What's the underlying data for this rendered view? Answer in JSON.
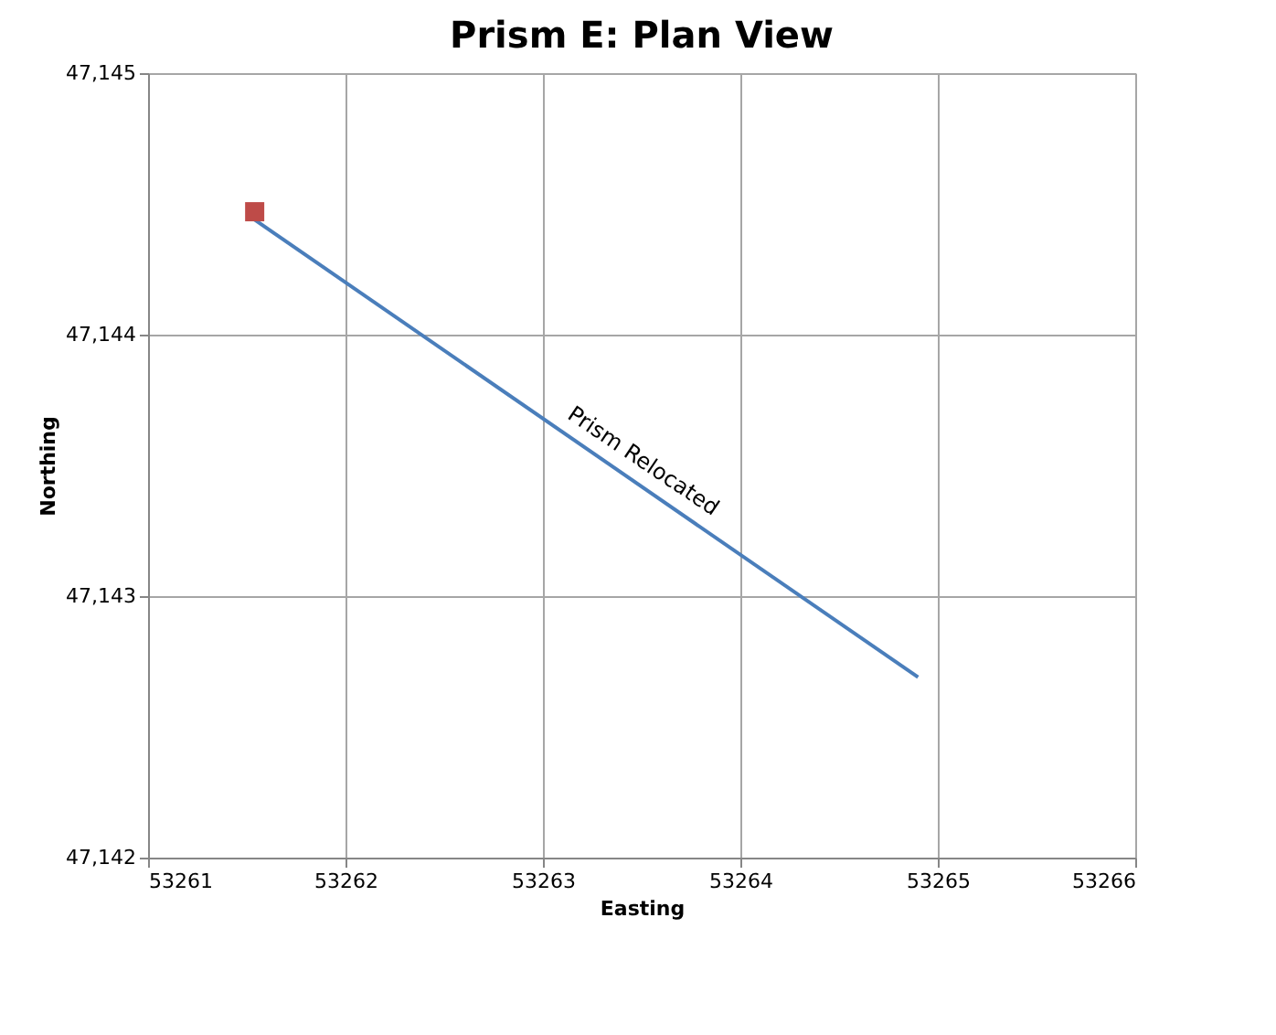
{
  "chart_data": {
    "type": "line",
    "title": "Prism E: Plan View",
    "xlabel": "Easting",
    "ylabel": "Northing",
    "xlim": [
      53261,
      53266
    ],
    "xticks": [
      53261,
      53262,
      53263,
      53264,
      53265,
      53266
    ],
    "ylim": [
      47142,
      47145
    ],
    "yticks": [
      {
        "value": 47142,
        "label": "47,142"
      },
      {
        "value": 47143,
        "label": "47,143"
      },
      {
        "value": 47144,
        "label": "47,144"
      },
      {
        "value": 47145,
        "label": "47,145"
      }
    ],
    "grid": true,
    "series": [
      {
        "type": "line",
        "color": "#4a7ebb",
        "x": [
          53261.5,
          53264.9
        ],
        "values": [
          47144.46,
          47142.69
        ]
      },
      {
        "type": "scatter",
        "marker": "square",
        "color": "#be4b48",
        "x": [
          53261.54
        ],
        "values": [
          47144.47
        ]
      }
    ],
    "annotations": [
      "Prism Relocated"
    ]
  }
}
